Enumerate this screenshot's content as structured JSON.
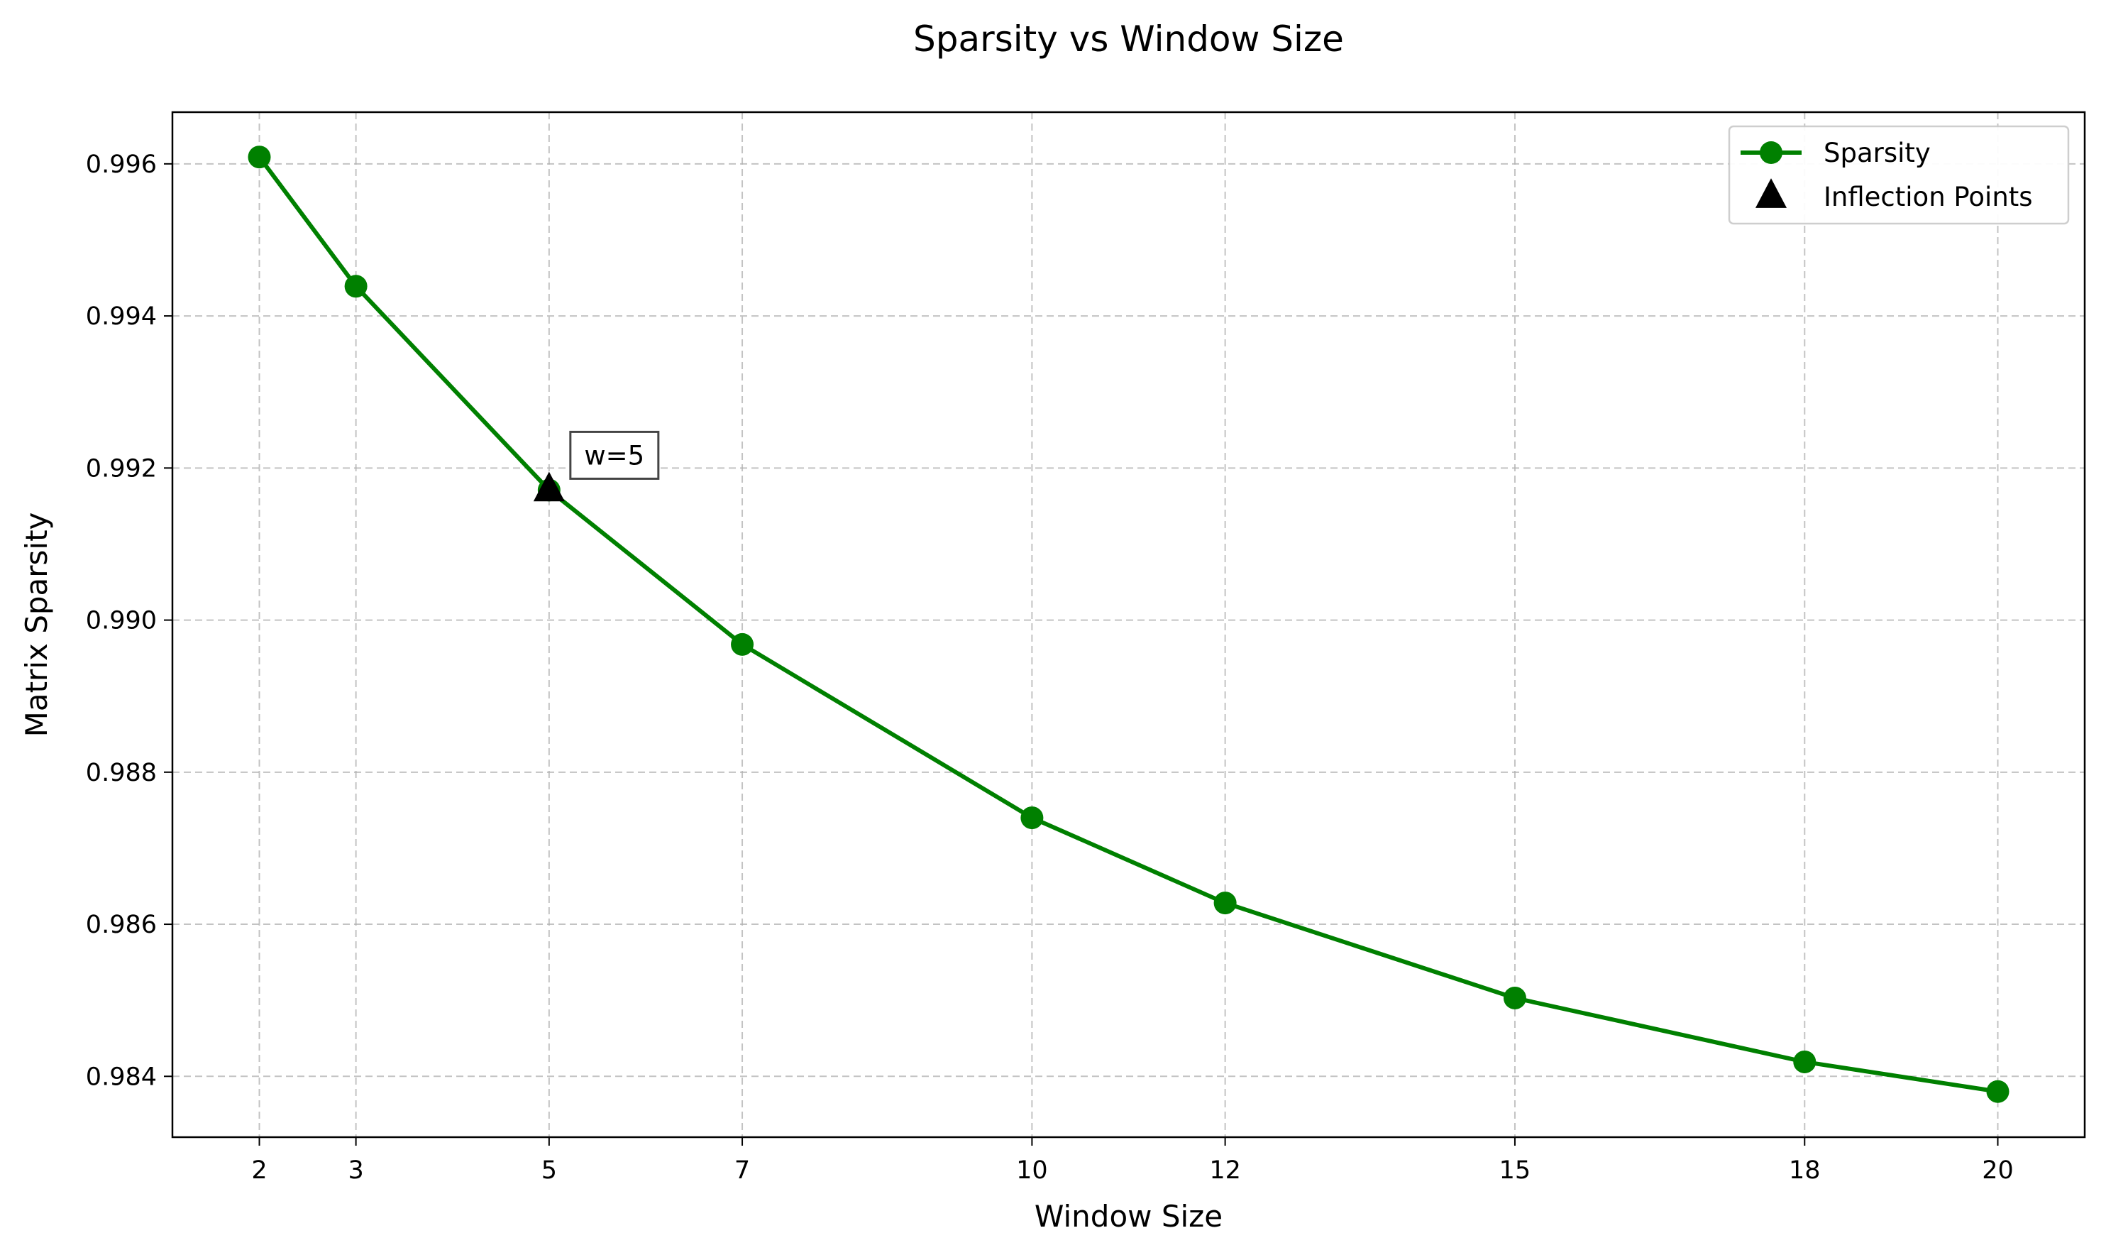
{
  "chart_data": {
    "type": "line",
    "title": "Sparsity vs Window Size",
    "xlabel": "Window Size",
    "ylabel": "Matrix Sparsity",
    "x": [
      2,
      3,
      5,
      7,
      10,
      12,
      15,
      18,
      20
    ],
    "x_ticks": [
      "2",
      "3",
      "5",
      "7",
      "10",
      "12",
      "15",
      "18",
      "20"
    ],
    "y_ticks": [
      "0.984",
      "0.986",
      "0.988",
      "0.990",
      "0.992",
      "0.994",
      "0.996"
    ],
    "y_tick_values": [
      0.984,
      0.986,
      0.988,
      0.99,
      0.992,
      0.994,
      0.996
    ],
    "xlim": [
      1.1,
      20.9
    ],
    "ylim": [
      0.9832,
      0.99668
    ],
    "grid": true,
    "legend_position": "top-right",
    "series": [
      {
        "name": "Sparsity",
        "color": "#008000",
        "marker": "circle",
        "values": [
          0.99609,
          0.99439,
          0.99171,
          0.98968,
          0.9874,
          0.98628,
          0.98503,
          0.98419,
          0.9838
        ]
      },
      {
        "name": "Inflection Points",
        "color": "#000000",
        "marker": "triangle",
        "points": [
          {
            "x": 5,
            "y": 0.99171
          }
        ]
      }
    ],
    "annotations": [
      {
        "text": "w=5",
        "x": 5,
        "y": 0.99171
      }
    ]
  }
}
